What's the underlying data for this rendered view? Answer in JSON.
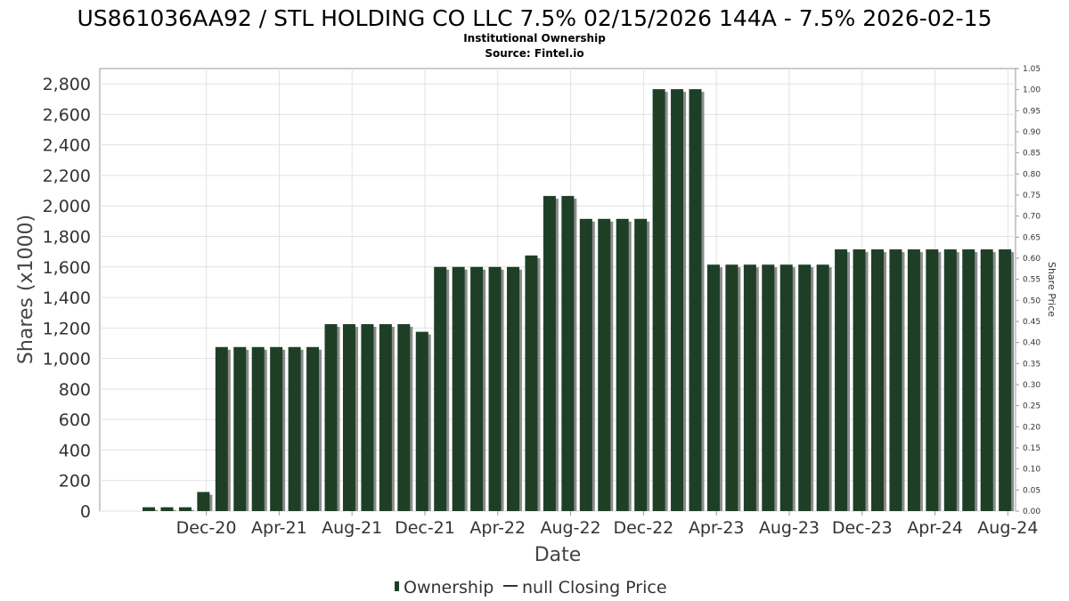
{
  "chart_data": {
    "type": "bar",
    "title": "US861036AA92 / STL HOLDING CO LLC 7.5% 02/15/2026 144A - 7.5% 2026-02-15",
    "subtitle": "Institutional Ownership",
    "source": "Source: Fintel.io",
    "xlabel": "Date",
    "ylabel": "Shares (x1000)",
    "y2label": "Share Price",
    "ylim": [
      0,
      2900
    ],
    "y2lim": [
      0,
      1.05
    ],
    "yticks": [
      "0",
      "200",
      "400",
      "600",
      "800",
      "1,000",
      "1,200",
      "1,400",
      "1,600",
      "1,800",
      "2,000",
      "2,200",
      "2,400",
      "2,600",
      "2,800"
    ],
    "y2ticks": [
      "0.00",
      "0.05",
      "0.10",
      "0.15",
      "0.20",
      "0.25",
      "0.30",
      "0.35",
      "0.40",
      "0.45",
      "0.50",
      "0.55",
      "0.60",
      "0.65",
      "0.70",
      "0.75",
      "0.80",
      "0.85",
      "0.90",
      "0.95",
      "1.00",
      "1.05"
    ],
    "xtick_labels": [
      "Dec-20",
      "Apr-21",
      "Aug-21",
      "Dec-21",
      "Apr-22",
      "Aug-22",
      "Dec-22",
      "Apr-23",
      "Aug-23",
      "Dec-23",
      "Apr-24",
      "Aug-24"
    ],
    "xtick_index": [
      3.5,
      7.5,
      11.5,
      15.5,
      19.5,
      23.5,
      27.5,
      31.5,
      35.5,
      39.5,
      43.5,
      47.5
    ],
    "grid": true,
    "legend_position": "bottom",
    "series": [
      {
        "name": "Ownership",
        "color": "#1e3f26",
        "values": [
          25,
          25,
          25,
          125,
          1075,
          1075,
          1075,
          1075,
          1075,
          1075,
          1225,
          1225,
          1225,
          1225,
          1225,
          1175,
          1600,
          1600,
          1600,
          1600,
          1600,
          1675,
          2065,
          2065,
          1915,
          1915,
          1915,
          1915,
          2765,
          2765,
          2765,
          1615,
          1615,
          1615,
          1615,
          1615,
          1615,
          1615,
          1715,
          1715,
          1715,
          1715,
          1715,
          1715,
          1715,
          1715,
          1715,
          1715
        ]
      },
      {
        "name": "null Closing Price",
        "color": "#333333",
        "values": []
      }
    ]
  }
}
